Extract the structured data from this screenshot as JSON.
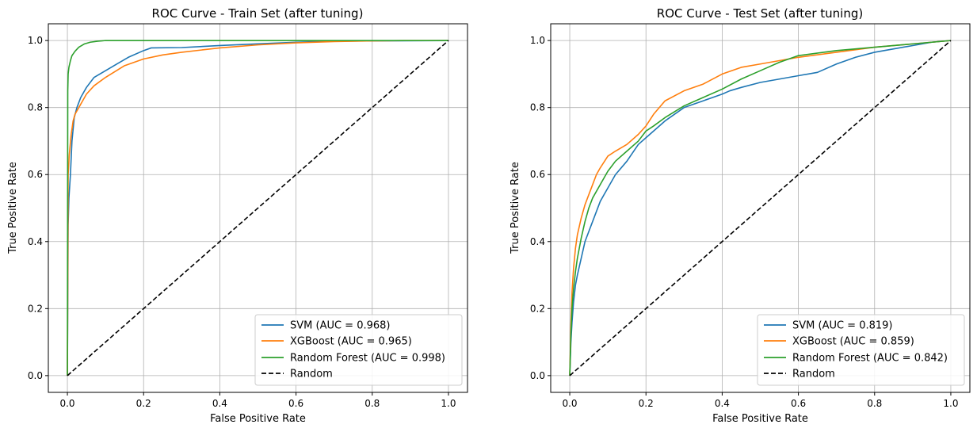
{
  "chart_data": [
    {
      "type": "line",
      "title": "ROC Curve - Train Set (after tuning)",
      "xlabel": "False Positive Rate",
      "ylabel": "True Positive Rate",
      "xlim": [
        -0.05,
        1.05
      ],
      "ylim": [
        -0.05,
        1.05
      ],
      "xticks": [
        "0.0",
        "0.2",
        "0.4",
        "0.6",
        "0.8",
        "1.0"
      ],
      "yticks": [
        "0.0",
        "0.2",
        "0.4",
        "0.6",
        "0.8",
        "1.0"
      ],
      "grid": true,
      "legend_position": "lower-right",
      "series": [
        {
          "name": "SVM (AUC = 0.968)",
          "color": "#1f77b4",
          "dashed": false,
          "x": [
            0,
            0.002,
            0.004,
            0.008,
            0.012,
            0.018,
            0.025,
            0.035,
            0.05,
            0.07,
            0.1,
            0.13,
            0.16,
            0.2,
            0.22,
            0.3,
            0.4,
            0.5,
            0.6,
            0.7,
            0.8,
            1.0
          ],
          "y": [
            0,
            0.45,
            0.53,
            0.6,
            0.7,
            0.77,
            0.8,
            0.83,
            0.86,
            0.89,
            0.91,
            0.93,
            0.95,
            0.97,
            0.978,
            0.979,
            0.985,
            0.99,
            0.995,
            0.998,
            0.999,
            1.0
          ]
        },
        {
          "name": "XGBoost (AUC = 0.965)",
          "color": "#ff7f0e",
          "dashed": false,
          "x": [
            0,
            0.002,
            0.005,
            0.01,
            0.015,
            0.02,
            0.03,
            0.04,
            0.05,
            0.07,
            0.1,
            0.15,
            0.2,
            0.25,
            0.3,
            0.4,
            0.5,
            0.6,
            0.7,
            0.8,
            0.9,
            1.0
          ],
          "y": [
            0,
            0.6,
            0.66,
            0.72,
            0.76,
            0.78,
            0.8,
            0.82,
            0.84,
            0.865,
            0.89,
            0.925,
            0.945,
            0.957,
            0.965,
            0.978,
            0.987,
            0.993,
            0.997,
            0.999,
            1.0,
            1.0
          ]
        },
        {
          "name": "Random Forest (AUC = 0.998)",
          "color": "#2ca02c",
          "dashed": false,
          "x": [
            0,
            0.001,
            0.002,
            0.004,
            0.008,
            0.012,
            0.02,
            0.03,
            0.045,
            0.06,
            0.08,
            0.1,
            0.2,
            0.4,
            0.6,
            0.8,
            1.0
          ],
          "y": [
            0,
            0.85,
            0.9,
            0.92,
            0.94,
            0.955,
            0.968,
            0.98,
            0.99,
            0.995,
            0.998,
            1.0,
            1.0,
            1.0,
            1.0,
            1.0,
            1.0
          ]
        },
        {
          "name": "Random",
          "color": "#000000",
          "dashed": true,
          "x": [
            0,
            1
          ],
          "y": [
            0,
            1
          ]
        }
      ]
    },
    {
      "type": "line",
      "title": "ROC Curve - Test Set (after tuning)",
      "xlabel": "False Positive Rate",
      "ylabel": "True Positive Rate",
      "xlim": [
        -0.05,
        1.05
      ],
      "ylim": [
        -0.05,
        1.05
      ],
      "xticks": [
        "0.0",
        "0.2",
        "0.4",
        "0.6",
        "0.8",
        "1.0"
      ],
      "yticks": [
        "0.0",
        "0.2",
        "0.4",
        "0.6",
        "0.8",
        "1.0"
      ],
      "grid": true,
      "legend_position": "lower-right",
      "series": [
        {
          "name": "SVM (AUC = 0.819)",
          "color": "#1f77b4",
          "dashed": false,
          "x": [
            0,
            0.003,
            0.006,
            0.01,
            0.015,
            0.02,
            0.03,
            0.04,
            0.06,
            0.08,
            0.1,
            0.12,
            0.15,
            0.18,
            0.2,
            0.25,
            0.3,
            0.35,
            0.4,
            0.42,
            0.45,
            0.5,
            0.55,
            0.6,
            0.65,
            0.7,
            0.75,
            0.8,
            0.85,
            0.9,
            0.95,
            1.0
          ],
          "y": [
            0,
            0.1,
            0.16,
            0.22,
            0.27,
            0.3,
            0.35,
            0.4,
            0.46,
            0.52,
            0.56,
            0.6,
            0.64,
            0.69,
            0.71,
            0.76,
            0.8,
            0.82,
            0.84,
            0.85,
            0.86,
            0.875,
            0.885,
            0.895,
            0.905,
            0.93,
            0.95,
            0.965,
            0.975,
            0.985,
            0.995,
            1.0
          ]
        },
        {
          "name": "XGBoost (AUC = 0.859)",
          "color": "#ff7f0e",
          "dashed": false,
          "x": [
            0,
            0.003,
            0.006,
            0.01,
            0.015,
            0.02,
            0.03,
            0.04,
            0.05,
            0.06,
            0.07,
            0.08,
            0.1,
            0.12,
            0.15,
            0.18,
            0.2,
            0.22,
            0.25,
            0.3,
            0.35,
            0.4,
            0.45,
            0.5,
            0.55,
            0.6,
            0.7,
            0.8,
            0.9,
            1.0
          ],
          "y": [
            0,
            0.15,
            0.25,
            0.32,
            0.38,
            0.42,
            0.47,
            0.51,
            0.54,
            0.57,
            0.6,
            0.62,
            0.655,
            0.67,
            0.69,
            0.72,
            0.745,
            0.78,
            0.82,
            0.85,
            0.87,
            0.9,
            0.92,
            0.93,
            0.94,
            0.95,
            0.965,
            0.98,
            0.99,
            1.0
          ]
        },
        {
          "name": "Random Forest (AUC = 0.842)",
          "color": "#2ca02c",
          "dashed": false,
          "x": [
            0,
            0.003,
            0.006,
            0.01,
            0.015,
            0.02,
            0.03,
            0.04,
            0.05,
            0.06,
            0.08,
            0.1,
            0.12,
            0.15,
            0.18,
            0.2,
            0.22,
            0.25,
            0.3,
            0.35,
            0.4,
            0.45,
            0.5,
            0.55,
            0.6,
            0.7,
            0.8,
            0.9,
            1.0
          ],
          "y": [
            0,
            0.12,
            0.2,
            0.26,
            0.31,
            0.35,
            0.41,
            0.46,
            0.5,
            0.53,
            0.57,
            0.61,
            0.64,
            0.67,
            0.7,
            0.73,
            0.745,
            0.77,
            0.805,
            0.83,
            0.855,
            0.885,
            0.91,
            0.935,
            0.955,
            0.97,
            0.98,
            0.99,
            1.0
          ]
        },
        {
          "name": "Random",
          "color": "#000000",
          "dashed": true,
          "x": [
            0,
            1
          ],
          "y": [
            0,
            1
          ]
        }
      ]
    }
  ]
}
